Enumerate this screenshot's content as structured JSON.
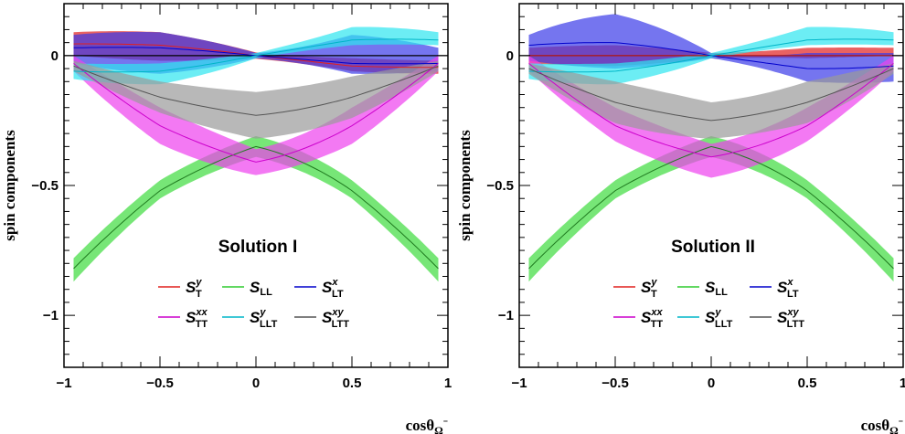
{
  "chart_data": [
    {
      "type": "line",
      "title": "Solution I",
      "xlabel": "cosθΩ⁻",
      "ylabel": "spin components",
      "xlim": [
        -1,
        1
      ],
      "ylim": [
        -1.2,
        0.2
      ],
      "xticks": [
        -1,
        -0.5,
        0,
        0.5,
        1
      ],
      "xtick_labels": [
        "−1",
        "−0.5",
        "0",
        "0.5",
        "1"
      ],
      "yticks": [
        -1,
        -0.5,
        0
      ],
      "ytick_labels": [
        "−1",
        "−0.5",
        "0"
      ],
      "zero_line": true,
      "x": [
        -0.95,
        -0.5,
        0,
        0.5,
        0.95
      ],
      "series": [
        {
          "name": "S_T^y",
          "color": "#e0201f",
          "band": "#e0201f",
          "values": [
            0.045,
            0.04,
            0,
            -0.04,
            -0.045
          ],
          "lower": [
            0.0,
            -0.02,
            -0.012,
            -0.06,
            -0.07
          ],
          "upper": [
            0.09,
            0.09,
            0.012,
            -0.01,
            -0.02
          ]
        },
        {
          "name": "S_LL",
          "color": "#1f7a1f",
          "band": "#3ddc3d",
          "values": [
            -0.82,
            -0.52,
            -0.35,
            -0.52,
            -0.82
          ],
          "lower": [
            -0.87,
            -0.55,
            -0.39,
            -0.55,
            -0.87
          ],
          "upper": [
            -0.78,
            -0.48,
            -0.31,
            -0.48,
            -0.78
          ]
        },
        {
          "name": "S_LT^x",
          "color": "#0000cc",
          "band": "#3a3ae8",
          "values": [
            0.03,
            0.03,
            0,
            -0.03,
            -0.03
          ],
          "lower": [
            -0.03,
            -0.07,
            -0.01,
            -0.07,
            -0.06
          ],
          "upper": [
            0.08,
            0.09,
            0.01,
            0.08,
            0.03
          ]
        },
        {
          "name": "S_TT^xx",
          "color": "#cc00cc",
          "band": "#ee40ee",
          "values": [
            -0.03,
            -0.27,
            -0.41,
            -0.27,
            -0.03
          ],
          "lower": [
            -0.06,
            -0.34,
            -0.46,
            -0.34,
            -0.06
          ],
          "upper": [
            0.0,
            -0.2,
            -0.36,
            -0.2,
            0.0
          ]
        },
        {
          "name": "S_LLT^y",
          "color": "#00b5c8",
          "band": "#2ee6f0",
          "values": [
            -0.06,
            -0.06,
            0,
            0.06,
            0.06
          ],
          "lower": [
            -0.09,
            -0.11,
            -0.01,
            0.04,
            0.04
          ],
          "upper": [
            -0.03,
            -0.03,
            0.01,
            0.11,
            0.09
          ]
        },
        {
          "name": "S_LTT^xy",
          "color": "#555555",
          "band": "#9a9a9a",
          "values": [
            -0.04,
            -0.16,
            -0.23,
            -0.16,
            -0.04
          ],
          "lower": [
            -0.06,
            -0.22,
            -0.32,
            -0.24,
            -0.06
          ],
          "upper": [
            -0.02,
            -0.1,
            -0.14,
            -0.08,
            -0.02
          ]
        }
      ]
    },
    {
      "type": "line",
      "title": "Solution II",
      "xlabel": "cosθΩ⁻",
      "ylabel": "spin components",
      "xlim": [
        -1,
        1
      ],
      "ylim": [
        -1.2,
        0.2
      ],
      "xticks": [
        -1,
        -0.5,
        0,
        0.5,
        1
      ],
      "xtick_labels": [
        "−1",
        "−0.5",
        "0",
        "0.5",
        "1"
      ],
      "yticks": [
        -1,
        -0.5,
        0
      ],
      "ytick_labels": [
        "−1",
        "−0.5",
        "0"
      ],
      "zero_line": true,
      "x": [
        -0.95,
        -0.5,
        0,
        0.5,
        0.95
      ],
      "series": [
        {
          "name": "S_T^y",
          "color": "#e0201f",
          "band": "#e0201f",
          "values": [
            0.0,
            0.0,
            0.0,
            0.0,
            0.0
          ],
          "lower": [
            -0.03,
            -0.04,
            -0.01,
            -0.01,
            0.0
          ],
          "upper": [
            0.03,
            0.04,
            0.01,
            0.03,
            0.03
          ]
        },
        {
          "name": "S_LL",
          "color": "#1f7a1f",
          "band": "#3ddc3d",
          "values": [
            -0.82,
            -0.52,
            -0.35,
            -0.52,
            -0.82
          ],
          "lower": [
            -0.87,
            -0.55,
            -0.39,
            -0.55,
            -0.87
          ],
          "upper": [
            -0.78,
            -0.48,
            -0.31,
            -0.48,
            -0.78
          ]
        },
        {
          "name": "S_LT^x",
          "color": "#0000cc",
          "band": "#3a3ae8",
          "values": [
            0.04,
            0.05,
            0,
            -0.05,
            -0.04
          ],
          "lower": [
            -0.02,
            -0.05,
            -0.01,
            -0.1,
            -0.1
          ],
          "upper": [
            0.08,
            0.16,
            0.01,
            0.01,
            0.01
          ]
        },
        {
          "name": "S_TT^xx",
          "color": "#cc00cc",
          "band": "#ee40ee",
          "values": [
            -0.03,
            -0.27,
            -0.39,
            -0.27,
            -0.03
          ],
          "lower": [
            -0.06,
            -0.33,
            -0.47,
            -0.33,
            -0.06
          ],
          "upper": [
            0.0,
            -0.2,
            -0.34,
            -0.2,
            0.0
          ]
        },
        {
          "name": "S_LLT^y",
          "color": "#00b5c8",
          "band": "#2ee6f0",
          "values": [
            -0.06,
            -0.06,
            0,
            0.06,
            0.06
          ],
          "lower": [
            -0.09,
            -0.11,
            -0.01,
            0.04,
            0.04
          ],
          "upper": [
            -0.03,
            -0.03,
            0.01,
            0.11,
            0.09
          ]
        },
        {
          "name": "S_LTT^xy",
          "color": "#555555",
          "band": "#9a9a9a",
          "values": [
            -0.05,
            -0.18,
            -0.25,
            -0.18,
            -0.05
          ],
          "lower": [
            -0.07,
            -0.26,
            -0.32,
            -0.26,
            -0.07
          ],
          "upper": [
            -0.03,
            -0.1,
            -0.18,
            -0.1,
            -0.03
          ]
        }
      ]
    }
  ],
  "legend": {
    "entries": [
      {
        "base": "S",
        "sup": "y",
        "sub": "T",
        "color": "#e0201f"
      },
      {
        "base": "S",
        "sup": "",
        "sub": "LL",
        "color": "#2ecc2e"
      },
      {
        "base": "S",
        "sup": "x",
        "sub": "LT",
        "color": "#0000cc"
      },
      {
        "base": "S",
        "sup": "xx",
        "sub": "TT",
        "color": "#cc00cc"
      },
      {
        "base": "S",
        "sup": "y",
        "sub": "LLT",
        "color": "#00b5c8"
      },
      {
        "base": "S",
        "sup": "xy",
        "sub": "LTT",
        "color": "#555555"
      }
    ]
  }
}
